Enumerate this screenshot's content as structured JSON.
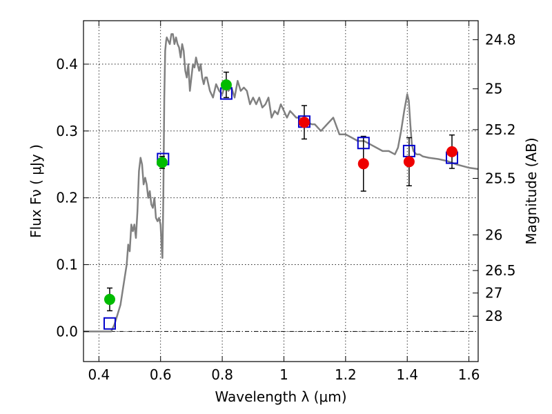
{
  "chart_data": {
    "type": "scatter",
    "xlabel": "Wavelength  λ (μm)",
    "ylabel": "Flux  Fν  ( μJy )",
    "y2label": "Magnitude (AB)",
    "xlim": [
      0.35,
      1.63
    ],
    "ylim": [
      -0.045,
      0.465
    ],
    "grid": true,
    "colors": {
      "model": "#808080",
      "green": "#00bb00",
      "red": "#ee0000",
      "blue": "#0000cc"
    },
    "x_ticks": [
      {
        "v": 0.4,
        "label": "0.4"
      },
      {
        "v": 0.6,
        "label": "0.6"
      },
      {
        "v": 0.8,
        "label": "0.8"
      },
      {
        "v": 1.0,
        "label": "1"
      },
      {
        "v": 1.2,
        "label": "1.2"
      },
      {
        "v": 1.4,
        "label": "1.4"
      },
      {
        "v": 1.6,
        "label": "1.6"
      }
    ],
    "y_ticks": [
      {
        "v": 0.0,
        "label": "0.0"
      },
      {
        "v": 0.1,
        "label": "0.1"
      },
      {
        "v": 0.2,
        "label": "0.2"
      },
      {
        "v": 0.3,
        "label": "0.3"
      },
      {
        "v": 0.4,
        "label": "0.4"
      }
    ],
    "mag_ticks": [
      {
        "mag": 24.8,
        "label": "24.8"
      },
      {
        "mag": 25,
        "label": "25"
      },
      {
        "mag": 25.2,
        "label": "25.2"
      },
      {
        "mag": 25.5,
        "label": "25.5"
      },
      {
        "mag": 26,
        "label": "26"
      },
      {
        "mag": 26.5,
        "label": "26.5"
      },
      {
        "mag": 27,
        "label": "27"
      },
      {
        "mag": 28,
        "label": "28"
      }
    ],
    "series": [
      {
        "name": "model spectrum",
        "kind": "line",
        "color": "#808080",
        "x": [
          0.35,
          0.44,
          0.45,
          0.46,
          0.47,
          0.48,
          0.49,
          0.495,
          0.5,
          0.505,
          0.51,
          0.515,
          0.52,
          0.525,
          0.53,
          0.535,
          0.54,
          0.545,
          0.55,
          0.555,
          0.56,
          0.565,
          0.57,
          0.575,
          0.58,
          0.585,
          0.59,
          0.595,
          0.6,
          0.603,
          0.606,
          0.609,
          0.612,
          0.615,
          0.618,
          0.62,
          0.625,
          0.63,
          0.635,
          0.64,
          0.645,
          0.65,
          0.655,
          0.66,
          0.665,
          0.67,
          0.675,
          0.68,
          0.685,
          0.69,
          0.695,
          0.7,
          0.705,
          0.71,
          0.715,
          0.72,
          0.725,
          0.73,
          0.735,
          0.74,
          0.745,
          0.75,
          0.76,
          0.77,
          0.78,
          0.79,
          0.8,
          0.81,
          0.82,
          0.83,
          0.84,
          0.85,
          0.86,
          0.87,
          0.88,
          0.89,
          0.9,
          0.91,
          0.92,
          0.93,
          0.94,
          0.95,
          0.96,
          0.97,
          0.98,
          0.99,
          1.0,
          1.01,
          1.02,
          1.03,
          1.04,
          1.05,
          1.07,
          1.09,
          1.1,
          1.12,
          1.14,
          1.16,
          1.18,
          1.2,
          1.22,
          1.24,
          1.26,
          1.28,
          1.3,
          1.32,
          1.34,
          1.36,
          1.37,
          1.38,
          1.39,
          1.4,
          1.405,
          1.41,
          1.415,
          1.42,
          1.43,
          1.44,
          1.45,
          1.47,
          1.5,
          1.53,
          1.56,
          1.6,
          1.63
        ],
        "y": [
          0.0,
          0.0,
          0.01,
          0.025,
          0.04,
          0.07,
          0.1,
          0.13,
          0.12,
          0.16,
          0.15,
          0.16,
          0.14,
          0.18,
          0.24,
          0.26,
          0.25,
          0.22,
          0.23,
          0.22,
          0.2,
          0.21,
          0.19,
          0.185,
          0.2,
          0.17,
          0.165,
          0.17,
          0.16,
          0.13,
          0.11,
          0.2,
          0.35,
          0.42,
          0.435,
          0.44,
          0.435,
          0.43,
          0.445,
          0.445,
          0.43,
          0.44,
          0.43,
          0.425,
          0.41,
          0.43,
          0.42,
          0.39,
          0.38,
          0.4,
          0.36,
          0.38,
          0.4,
          0.395,
          0.41,
          0.4,
          0.39,
          0.4,
          0.38,
          0.37,
          0.38,
          0.38,
          0.36,
          0.35,
          0.37,
          0.36,
          0.355,
          0.37,
          0.36,
          0.365,
          0.35,
          0.375,
          0.36,
          0.365,
          0.36,
          0.34,
          0.35,
          0.34,
          0.35,
          0.335,
          0.34,
          0.35,
          0.32,
          0.33,
          0.325,
          0.34,
          0.33,
          0.32,
          0.33,
          0.325,
          0.32,
          0.32,
          0.315,
          0.31,
          0.31,
          0.3,
          0.31,
          0.32,
          0.295,
          0.295,
          0.29,
          0.285,
          0.285,
          0.28,
          0.275,
          0.27,
          0.27,
          0.265,
          0.275,
          0.3,
          0.33,
          0.355,
          0.345,
          0.31,
          0.28,
          0.27,
          0.265,
          0.265,
          0.262,
          0.26,
          0.258,
          0.255,
          0.25,
          0.245,
          0.243
        ]
      },
      {
        "name": "green points",
        "kind": "errorbar",
        "marker": "circle",
        "color": "#00bb00",
        "points": [
          {
            "x": 0.435,
            "y": 0.048,
            "err": 0.017
          },
          {
            "x": 0.605,
            "y": 0.253,
            "err": 0.009
          },
          {
            "x": 0.813,
            "y": 0.369,
            "err": 0.019
          }
        ]
      },
      {
        "name": "red points",
        "kind": "errorbar",
        "marker": "circle",
        "color": "#ee0000",
        "points": [
          {
            "x": 1.066,
            "y": 0.313,
            "err": 0.025
          },
          {
            "x": 1.258,
            "y": 0.251,
            "err": 0.041
          },
          {
            "x": 1.406,
            "y": 0.254,
            "err": 0.036
          },
          {
            "x": 1.545,
            "y": 0.269,
            "err": 0.025
          }
        ]
      },
      {
        "name": "model bandpass fluxes",
        "kind": "scatter",
        "marker": "open-square",
        "color": "#0000cc",
        "points": [
          {
            "x": 0.435,
            "y": 0.012
          },
          {
            "x": 0.608,
            "y": 0.258
          },
          {
            "x": 0.813,
            "y": 0.356
          },
          {
            "x": 1.066,
            "y": 0.314
          },
          {
            "x": 1.258,
            "y": 0.282
          },
          {
            "x": 1.406,
            "y": 0.27
          },
          {
            "x": 1.545,
            "y": 0.26
          }
        ]
      }
    ]
  }
}
